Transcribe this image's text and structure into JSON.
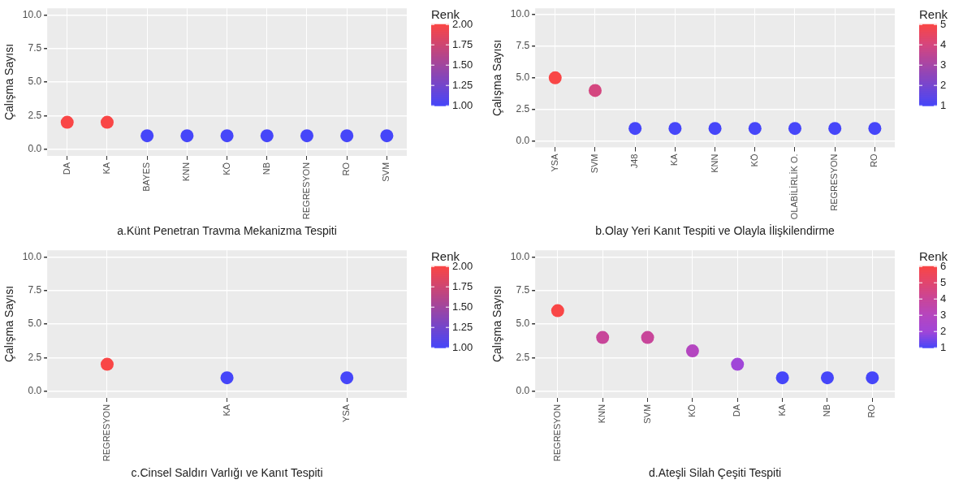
{
  "chart_data": [
    {
      "type": "scatter",
      "xlabel": "a.Künt Penetran Travma Mekanizma Tespiti",
      "ylabel": "Çalışma Sayısı",
      "legend_title": "Renk",
      "marker": "circle",
      "grid": true,
      "categories": [
        "DA",
        "KA",
        "BAYES",
        "KNN",
        "KÖ",
        "NB",
        "REGRESYON",
        "RO",
        "SVM"
      ],
      "values": [
        2,
        2,
        1,
        1,
        1,
        1,
        1,
        1,
        1
      ],
      "cvalues": [
        2,
        2,
        1,
        1,
        1,
        1,
        1,
        1,
        1
      ],
      "colors": [
        "#f94646",
        "#f94646",
        "#4646f9",
        "#4646f9",
        "#4646f9",
        "#4646f9",
        "#4646f9",
        "#4646f9",
        "#4646f9"
      ],
      "ylim": [
        -0.5,
        10.5
      ],
      "yticks": [
        {
          "value": 0,
          "label": "0.0"
        },
        {
          "value": 2.5,
          "label": "2.5"
        },
        {
          "value": 5,
          "label": "5.0"
        },
        {
          "value": 7.5,
          "label": "7.5"
        },
        {
          "value": 10,
          "label": "10.0"
        }
      ],
      "clim": [
        1,
        2
      ],
      "cticks": [
        {
          "value": 1,
          "label": "1.00"
        },
        1.25,
        {
          "value": 1.5,
          "label": "1.50"
        },
        1.75,
        {
          "value": 2,
          "label": "2.00"
        }
      ]
    },
    {
      "type": "scatter",
      "xlabel": "b.Olay Yeri Kanıt Tespiti ve Olayla İlişkilendirme",
      "ylabel": "Çalışma Sayısı",
      "legend_title": "Renk",
      "marker": "circle",
      "grid": true,
      "categories": [
        "YSA",
        "SVM",
        "J48",
        "KA",
        "KNN",
        "KÖ",
        "OLABİLİRLİK O.",
        "REGRESYON",
        "RO"
      ],
      "values": [
        5,
        4,
        1,
        1,
        1,
        1,
        1,
        1,
        1
      ],
      "cvalues": [
        5,
        4,
        1,
        1,
        1,
        1,
        1,
        1,
        1
      ],
      "colors": [
        "#f94646",
        "#d4467f",
        "#4646f9",
        "#4646f9",
        "#4646f9",
        "#4646f9",
        "#4646f9",
        "#4646f9",
        "#4646f9"
      ],
      "ylim": [
        -0.5,
        10.5
      ],
      "yticks": [
        {
          "value": 0,
          "label": "0.0"
        },
        {
          "value": 2.5,
          "label": "2.5"
        },
        {
          "value": 5,
          "label": "5.0"
        },
        {
          "value": 7.5,
          "label": "7.5"
        },
        {
          "value": 10,
          "label": "10.0"
        }
      ],
      "clim": [
        1,
        5
      ],
      "cticks": [
        1,
        2,
        3,
        4,
        5
      ]
    },
    {
      "type": "scatter",
      "xlabel": "c.Cinsel Saldırı Varlığı ve Kanıt Tespiti",
      "ylabel": "Çalışma Sayısı",
      "legend_title": "Renk",
      "marker": "circle",
      "grid": true,
      "categories": [
        "REGRESYON",
        "KA",
        "YSA"
      ],
      "values": [
        2,
        1,
        1
      ],
      "cvalues": [
        2,
        1,
        1
      ],
      "colors": [
        "#f94646",
        "#4646f9",
        "#4646f9"
      ],
      "ylim": [
        -0.5,
        10.5
      ],
      "yticks": [
        {
          "value": 0,
          "label": "0.0"
        },
        {
          "value": 2.5,
          "label": "2.5"
        },
        {
          "value": 5,
          "label": "5.0"
        },
        {
          "value": 7.5,
          "label": "7.5"
        },
        {
          "value": 10,
          "label": "10.0"
        }
      ],
      "clim": [
        1,
        2
      ],
      "cticks": [
        {
          "value": 1,
          "label": "1.00"
        },
        1.25,
        {
          "value": 1.5,
          "label": "1.50"
        },
        1.75,
        {
          "value": 2,
          "label": "2.00"
        }
      ]
    },
    {
      "type": "scatter",
      "xlabel": "d.Ateşli Silah Çeşiti Tespiti",
      "ylabel": "Çalışma Sayısı",
      "legend_title": "Renk",
      "marker": "circle",
      "grid": true,
      "categories": [
        "REGRESYON",
        "KNN",
        "SVM",
        "KÖ",
        "DA",
        "KA",
        "NB",
        "RO"
      ],
      "values": [
        6,
        4,
        4,
        3,
        2,
        1,
        1,
        1
      ],
      "cvalues": [
        6,
        4,
        4,
        3,
        2,
        1,
        1,
        1
      ],
      "colors": [
        "#f94646",
        "#c8469a",
        "#c8469a",
        "#b446c0",
        "#a046d8",
        "#4646f9",
        "#4646f9",
        "#4646f9"
      ],
      "ylim": [
        -0.5,
        10.5
      ],
      "yticks": [
        {
          "value": 0,
          "label": "0.0"
        },
        {
          "value": 2.5,
          "label": "2.5"
        },
        {
          "value": 5,
          "label": "5.0"
        },
        {
          "value": 7.5,
          "label": "7.5"
        },
        {
          "value": 10,
          "label": "10.0"
        }
      ],
      "clim": [
        1,
        6
      ],
      "cticks": [
        1,
        2,
        3,
        4,
        5,
        6
      ]
    }
  ]
}
